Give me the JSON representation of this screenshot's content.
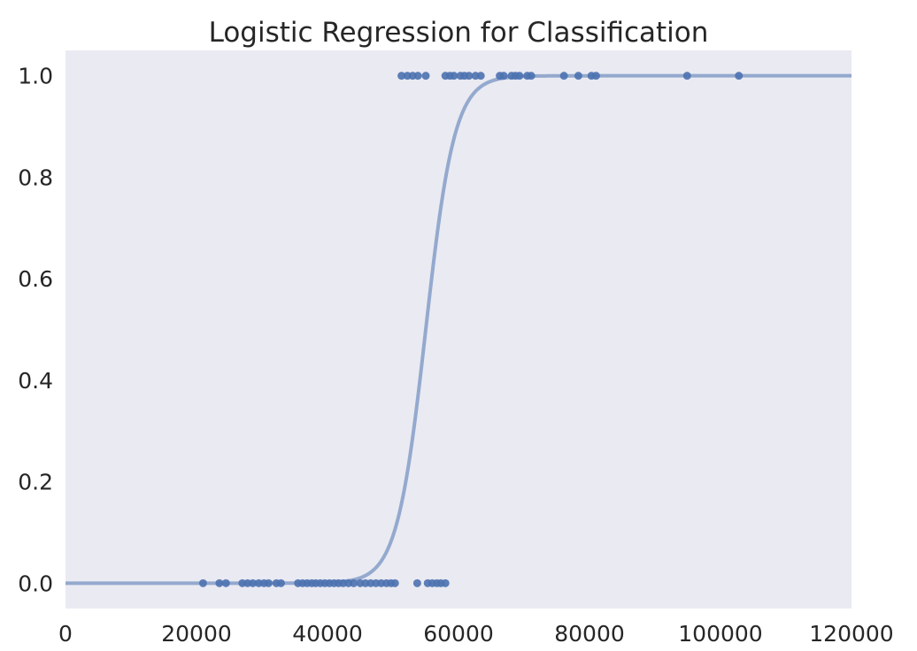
{
  "chart_data": {
    "type": "scatter",
    "title": "Logistic Regression for Classification",
    "xlabel": "",
    "ylabel": "",
    "xlim": [
      0,
      120000
    ],
    "ylim": [
      -0.05,
      1.05
    ],
    "grid": false,
    "x_ticks": [
      "0",
      "20000",
      "40000",
      "60000",
      "80000",
      "100000",
      "120000"
    ],
    "y_ticks": [
      "0.0",
      "0.2",
      "0.4",
      "0.6",
      "0.8",
      "1.0"
    ],
    "background_color": "#eaeaf2",
    "series": [
      {
        "type": "scatter",
        "color": "#4c72b0",
        "points": [
          [
            21000,
            0
          ],
          [
            23500,
            0
          ],
          [
            24500,
            0
          ],
          [
            27000,
            0
          ],
          [
            27800,
            0
          ],
          [
            28600,
            0
          ],
          [
            29500,
            0
          ],
          [
            30300,
            0
          ],
          [
            31000,
            0
          ],
          [
            32200,
            0
          ],
          [
            32900,
            0
          ],
          [
            35500,
            0
          ],
          [
            36200,
            0
          ],
          [
            36900,
            0
          ],
          [
            37600,
            0
          ],
          [
            38200,
            0
          ],
          [
            38900,
            0
          ],
          [
            39600,
            0
          ],
          [
            40300,
            0
          ],
          [
            41000,
            0
          ],
          [
            41700,
            0
          ],
          [
            42400,
            0
          ],
          [
            43200,
            0
          ],
          [
            44000,
            0
          ],
          [
            45000,
            0
          ],
          [
            45800,
            0
          ],
          [
            46600,
            0
          ],
          [
            47400,
            0
          ],
          [
            48200,
            0
          ],
          [
            49000,
            0
          ],
          [
            49700,
            0
          ],
          [
            50300,
            0
          ],
          [
            53700,
            0
          ],
          [
            55300,
            0
          ],
          [
            56000,
            0
          ],
          [
            56700,
            0
          ],
          [
            57300,
            0
          ],
          [
            58000,
            0
          ],
          [
            51300,
            1
          ],
          [
            52200,
            1
          ],
          [
            53000,
            1
          ],
          [
            53800,
            1
          ],
          [
            55000,
            1
          ],
          [
            58000,
            1
          ],
          [
            58700,
            1
          ],
          [
            59300,
            1
          ],
          [
            60300,
            1
          ],
          [
            60900,
            1
          ],
          [
            61600,
            1
          ],
          [
            62600,
            1
          ],
          [
            63400,
            1
          ],
          [
            66300,
            1
          ],
          [
            66900,
            1
          ],
          [
            68100,
            1
          ],
          [
            68700,
            1
          ],
          [
            69300,
            1
          ],
          [
            70500,
            1
          ],
          [
            71100,
            1
          ],
          [
            76100,
            1
          ],
          [
            78300,
            1
          ],
          [
            80300,
            1
          ],
          [
            81000,
            1
          ],
          [
            94900,
            1
          ],
          [
            102800,
            1
          ]
        ]
      },
      {
        "type": "line",
        "color": "#4c72b0",
        "logistic": {
          "midpoint": 55000,
          "scale": 2200
        }
      }
    ]
  }
}
